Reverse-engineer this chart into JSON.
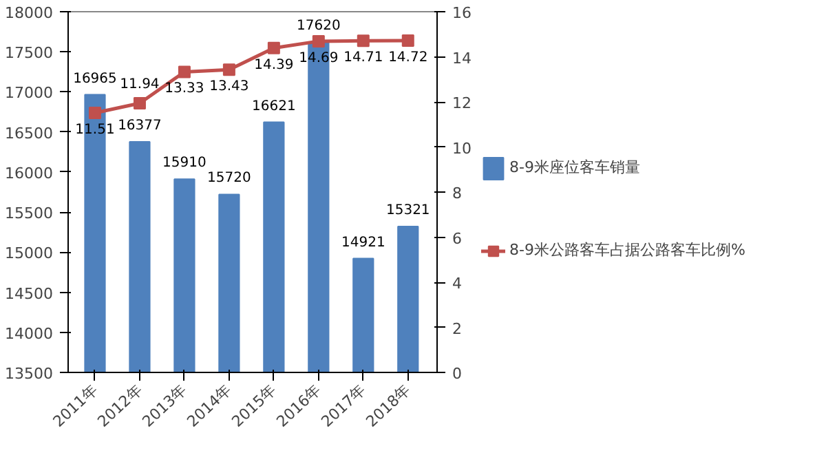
{
  "chart_data": {
    "type": "bar",
    "categories": [
      "2011年",
      "2012年",
      "2013年",
      "2014年",
      "2015年",
      "2016年",
      "2017年",
      "2018年"
    ],
    "series": [
      {
        "name": "8-9米座位客车销量",
        "color": "#4f81bd",
        "values": [
          16965,
          16377,
          15910,
          15720,
          16621,
          17620,
          14921,
          15321
        ]
      },
      {
        "name": "8-9米公路客车占据公路客车比例%",
        "type": "line",
        "axis": "y2",
        "color": "#c0504d",
        "marker": "square",
        "values": [
          11.51,
          11.94,
          13.33,
          13.43,
          14.39,
          14.69,
          14.71,
          14.72
        ]
      }
    ],
    "ylim": [
      13500,
      18000
    ],
    "yticks": [
      13500,
      14000,
      14500,
      15000,
      15500,
      16000,
      16500,
      17000,
      17500,
      18000
    ],
    "y2lim": [
      0,
      16
    ],
    "y2ticks": [
      0,
      2,
      4,
      6,
      8,
      10,
      12,
      14,
      16
    ],
    "data_labels": true,
    "legend": "right",
    "grid": false
  }
}
